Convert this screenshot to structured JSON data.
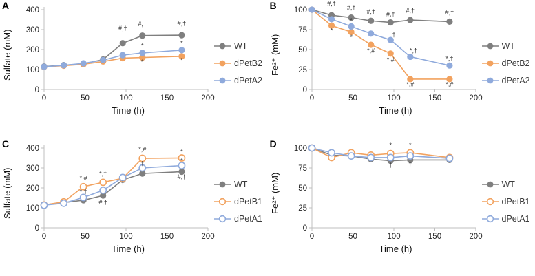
{
  "figure": {
    "background": "#ffffff"
  },
  "colors": {
    "wt_gray": "#7f7f7f",
    "orange": "#f2a25f",
    "blue": "#8faadc",
    "axis": "#bfbfbf"
  },
  "chart_data": [
    {
      "panel": "A",
      "type": "line",
      "xlabel": "Time (h)",
      "ylabel": "Sulfate (mM)",
      "x": [
        0,
        24,
        48,
        72,
        96,
        120,
        168
      ],
      "xlim": [
        0,
        200
      ],
      "ylim": [
        0,
        400
      ],
      "xticks": [
        0,
        50,
        100,
        150,
        200
      ],
      "yticks": [
        0,
        100,
        200,
        300,
        400
      ],
      "legend_position": "right",
      "series": [
        {
          "name": "WT",
          "color": "#7f7f7f",
          "marker": "filled",
          "values": [
            115,
            122,
            128,
            150,
            232,
            270,
            272
          ]
        },
        {
          "name": "dPetB2",
          "color": "#f2a25f",
          "marker": "filled",
          "values": [
            113,
            119,
            126,
            140,
            157,
            160,
            166
          ]
        },
        {
          "name": "dPetA2",
          "color": "#8faadc",
          "marker": "filled",
          "values": [
            114,
            121,
            131,
            147,
            172,
            183,
            197
          ]
        }
      ],
      "annotations": [
        {
          "x": 96,
          "y": 296,
          "text": "#,†"
        },
        {
          "x": 120,
          "y": 318,
          "text": "#,†"
        },
        {
          "x": 168,
          "y": 320,
          "text": "#,†"
        },
        {
          "x": 120,
          "y": 208,
          "text": "*"
        },
        {
          "x": 168,
          "y": 222,
          "text": "*"
        },
        {
          "x": 120,
          "y": 128,
          "text": "*"
        },
        {
          "x": 168,
          "y": 136,
          "text": "*"
        }
      ]
    },
    {
      "panel": "B",
      "type": "line",
      "xlabel": "Time (h)",
      "ylabel": "Fe²⁺ (mM)",
      "x": [
        0,
        24,
        48,
        72,
        96,
        120,
        168
      ],
      "xlim": [
        0,
        200
      ],
      "ylim": [
        0,
        100
      ],
      "xticks": [
        0,
        50,
        100,
        150,
        200
      ],
      "yticks": [
        0,
        25,
        50,
        75,
        100
      ],
      "legend_position": "right",
      "series": [
        {
          "name": "WT",
          "color": "#7f7f7f",
          "marker": "filled",
          "values": [
            100,
            93,
            90,
            86,
            84,
            87,
            85
          ]
        },
        {
          "name": "dPetB2",
          "color": "#f2a25f",
          "marker": "filled",
          "values": [
            100,
            80,
            72,
            56,
            45,
            13,
            13
          ]
        },
        {
          "name": "dPetA2",
          "color": "#8faadc",
          "marker": "filled",
          "values": [
            100,
            88,
            79,
            70,
            62,
            41,
            30
          ]
        }
      ],
      "annotations": [
        {
          "x": 24,
          "y": 105,
          "text": "#,†"
        },
        {
          "x": 48,
          "y": 100,
          "text": "#,†"
        },
        {
          "x": 72,
          "y": 95,
          "text": "#,†"
        },
        {
          "x": 96,
          "y": 92,
          "text": "#,†"
        },
        {
          "x": 120,
          "y": 96,
          "text": "#,†"
        },
        {
          "x": 168,
          "y": 94,
          "text": "#,†"
        },
        {
          "x": 24,
          "y": 71,
          "text": "*"
        },
        {
          "x": 48,
          "y": 63,
          "text": "*"
        },
        {
          "x": 72,
          "y": 46,
          "text": "*,#"
        },
        {
          "x": 96,
          "y": 35,
          "text": "*,#"
        },
        {
          "x": 120,
          "y": 4,
          "text": "*,#"
        },
        {
          "x": 168,
          "y": 4,
          "text": "*,#"
        },
        {
          "x": 48,
          "y": 84,
          "text": "*"
        },
        {
          "x": 100,
          "y": 66,
          "text": "†"
        },
        {
          "x": 124,
          "y": 46,
          "text": "*,†"
        },
        {
          "x": 168,
          "y": 36,
          "text": "*,†"
        }
      ]
    },
    {
      "panel": "C",
      "type": "line",
      "xlabel": "Time (h)",
      "ylabel": "Sulfate (mM)",
      "x": [
        0,
        24,
        48,
        72,
        96,
        120,
        168
      ],
      "xlim": [
        0,
        200
      ],
      "ylim": [
        0,
        400
      ],
      "xticks": [
        0,
        50,
        100,
        150,
        200
      ],
      "yticks": [
        0,
        100,
        200,
        300,
        400
      ],
      "legend_position": "right",
      "series": [
        {
          "name": "WT",
          "color": "#7f7f7f",
          "marker": "filled",
          "values": [
            115,
            126,
            138,
            162,
            240,
            272,
            281
          ]
        },
        {
          "name": "dPetB1",
          "color": "#f2a25f",
          "marker": "open",
          "values": [
            114,
            130,
            206,
            228,
            248,
            348,
            350
          ]
        },
        {
          "name": "dPetA1",
          "color": "#8faadc",
          "marker": "open",
          "values": [
            113,
            123,
            152,
            188,
            252,
            300,
            312
          ]
        }
      ],
      "annotations": [
        {
          "x": 48,
          "y": 238,
          "text": "*,#"
        },
        {
          "x": 48,
          "y": 170,
          "text": "*,†"
        },
        {
          "x": 72,
          "y": 260,
          "text": "*,†"
        },
        {
          "x": 72,
          "y": 118,
          "text": "#,†"
        },
        {
          "x": 96,
          "y": 214,
          "text": "†"
        },
        {
          "x": 120,
          "y": 382,
          "text": "*,#"
        },
        {
          "x": 120,
          "y": 312,
          "text": "†"
        },
        {
          "x": 168,
          "y": 370,
          "text": "*"
        },
        {
          "x": 168,
          "y": 326,
          "text": "*"
        },
        {
          "x": 168,
          "y": 244,
          "text": "#,†"
        }
      ]
    },
    {
      "panel": "D",
      "type": "line",
      "xlabel": "Time (h)",
      "ylabel": "Fe²⁺ (mM)",
      "x": [
        0,
        24,
        48,
        72,
        96,
        120,
        168
      ],
      "xlim": [
        0,
        200
      ],
      "ylim": [
        0,
        100
      ],
      "xticks": [
        0,
        50,
        100,
        150,
        200
      ],
      "yticks": [
        0,
        25,
        50,
        75,
        100
      ],
      "legend_position": "right",
      "series": [
        {
          "name": "WT",
          "color": "#7f7f7f",
          "marker": "filled",
          "values": [
            100,
            91,
            90,
            86,
            84,
            85,
            85
          ]
        },
        {
          "name": "dPetB1",
          "color": "#f2a25f",
          "marker": "open",
          "values": [
            100,
            88,
            94,
            91,
            93,
            94,
            88
          ]
        },
        {
          "name": "dPetA1",
          "color": "#8faadc",
          "marker": "open",
          "values": [
            100,
            94,
            90,
            88,
            88,
            90,
            87
          ]
        }
      ],
      "annotations": [
        {
          "x": 96,
          "y": 101,
          "text": "*"
        },
        {
          "x": 120,
          "y": 101,
          "text": "*"
        },
        {
          "x": 96,
          "y": 76,
          "text": "†"
        },
        {
          "x": 120,
          "y": 77,
          "text": "†"
        }
      ]
    }
  ]
}
